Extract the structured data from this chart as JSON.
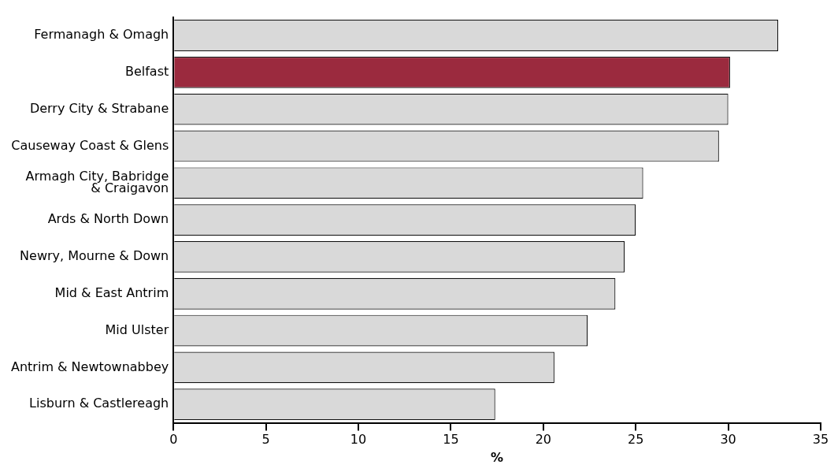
{
  "chart_data": {
    "type": "bar",
    "orientation": "horizontal",
    "xlabel": "%",
    "categories": [
      "Fermanagh & Omagh",
      "Belfast",
      "Derry City & Strabane",
      "Causeway Coast & Glens",
      "Armagh City, Babridge\n& Craigavon",
      "Ards & North Down",
      "Newry, Mourne & Down",
      "Mid & East Antrim",
      "Mid Ulster",
      "Antrim & Newtownabbey",
      "Lisburn & Castlereagh"
    ],
    "values": [
      32.7,
      30.1,
      30.0,
      29.5,
      25.4,
      25.0,
      24.4,
      23.9,
      22.4,
      20.6,
      17.4
    ],
    "colors": [
      "#d9d9d9",
      "#9b2a3e",
      "#d9d9d9",
      "#d9d9d9",
      "#d9d9d9",
      "#d9d9d9",
      "#d9d9d9",
      "#d9d9d9",
      "#d9d9d9",
      "#d9d9d9",
      "#d9d9d9"
    ],
    "xlim": [
      0,
      35
    ],
    "xticks": [
      0,
      5,
      10,
      15,
      20,
      25,
      30,
      35
    ],
    "grid": false,
    "legend": false
  }
}
